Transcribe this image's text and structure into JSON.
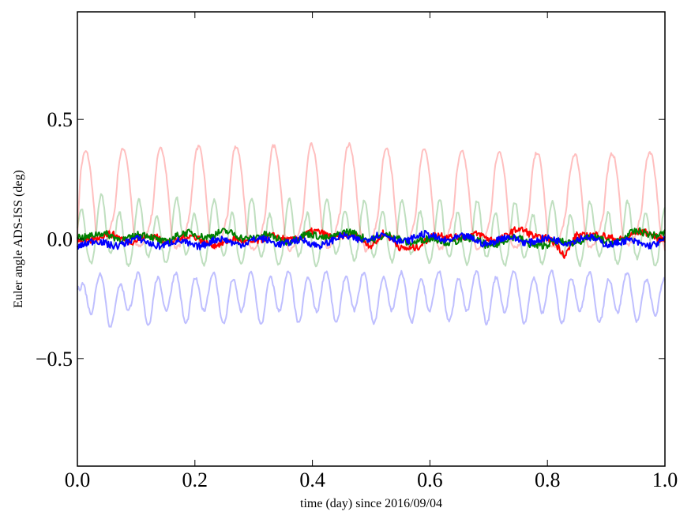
{
  "chart_data": {
    "type": "line",
    "title": "",
    "xlabel": "time (day) since 2016/09/04",
    "ylabel": "Euler angle ADS-ISS (deg)",
    "xlim": [
      0.0,
      1.0
    ],
    "ylim": [
      -0.95,
      0.95
    ],
    "xticks": [
      0.0,
      0.2,
      0.4,
      0.6,
      0.8,
      1.0
    ],
    "xtick_labels": [
      "0.0",
      "0.2",
      "0.4",
      "0.6",
      "0.8",
      "1.0"
    ],
    "yticks": [
      -0.5,
      0.0,
      0.5
    ],
    "ytick_labels": [
      "−0.5",
      "0.0",
      "0.5"
    ],
    "grid": false,
    "legend": "none",
    "series": [
      {
        "color": "#ff0000",
        "opacity": 0.25,
        "kind": "periodic",
        "period_days": 0.064,
        "baseline": 0.0,
        "peak": 0.42,
        "trough": -0.1,
        "x": [
          0.0,
          0.005,
          0.035,
          0.07,
          0.1,
          0.135,
          0.165,
          0.2,
          0.23,
          0.265,
          0.295,
          0.33,
          0.36,
          0.395,
          0.425,
          0.455,
          0.49,
          0.52,
          0.55,
          0.585,
          0.615,
          0.645,
          0.68,
          0.71,
          0.74,
          0.775,
          0.805,
          0.835,
          0.87,
          0.9,
          0.93,
          0.965,
          1.0
        ],
        "y": [
          0.05,
          0.4,
          0.0,
          0.43,
          0.0,
          0.41,
          0.0,
          0.42,
          0.0,
          0.41,
          0.0,
          0.4,
          0.0,
          0.4,
          0.02,
          0.45,
          0.02,
          0.38,
          0.0,
          0.37,
          0.0,
          0.37,
          0.0,
          0.37,
          0.0,
          0.35,
          0.0,
          0.36,
          0.0,
          0.38,
          0.0,
          0.37,
          0.0
        ]
      },
      {
        "color": "#008000",
        "opacity": 0.25,
        "kind": "periodic",
        "period_days": 0.032,
        "baseline": 0.0,
        "peak": 0.2,
        "trough": -0.14,
        "x": [
          0.0,
          0.015,
          0.045,
          0.08,
          0.11,
          0.14,
          0.175,
          0.205,
          0.24,
          0.27,
          0.3,
          0.335,
          0.365,
          0.4,
          0.43,
          0.46,
          0.495,
          0.525,
          0.56,
          0.59,
          0.62,
          0.655,
          0.685,
          0.72,
          0.75,
          0.78,
          0.815,
          0.845,
          0.88,
          0.91,
          0.94,
          0.975,
          1.0
        ],
        "y": [
          0.12,
          -0.12,
          0.2,
          -0.13,
          0.15,
          -0.13,
          0.18,
          -0.13,
          0.16,
          -0.13,
          0.16,
          -0.14,
          0.15,
          -0.13,
          0.15,
          -0.05,
          0.12,
          -0.08,
          0.15,
          -0.1,
          0.13,
          -0.1,
          0.12,
          -0.12,
          0.12,
          -0.12,
          0.12,
          -0.12,
          0.12,
          -0.1,
          0.1,
          -0.1,
          0.0
        ]
      },
      {
        "color": "#0000ff",
        "opacity": 0.25,
        "kind": "periodic",
        "period_days": 0.032,
        "baseline": -0.24,
        "peak": -0.11,
        "trough": -0.38,
        "x": [
          0.0,
          0.005,
          0.03,
          0.055,
          0.07,
          0.09,
          0.125,
          0.155,
          0.19,
          0.22,
          0.255,
          0.285,
          0.315,
          0.35,
          0.38,
          0.415,
          0.445,
          0.475,
          0.51,
          0.54,
          0.575,
          0.605,
          0.64,
          0.67,
          0.7,
          0.735,
          0.765,
          0.8,
          0.83,
          0.86,
          0.895,
          0.925,
          0.96,
          0.99,
          1.0
        ],
        "y": [
          -0.15,
          -0.36,
          -0.12,
          -0.35,
          -0.37,
          -0.12,
          -0.35,
          -0.12,
          -0.34,
          -0.12,
          -0.35,
          -0.12,
          -0.34,
          -0.12,
          -0.33,
          -0.12,
          -0.33,
          -0.12,
          -0.33,
          -0.12,
          -0.33,
          -0.12,
          -0.33,
          -0.12,
          -0.33,
          -0.12,
          -0.33,
          -0.13,
          -0.33,
          -0.13,
          -0.33,
          -0.14,
          -0.32,
          -0.18,
          -0.27
        ]
      },
      {
        "color": "#ff0000",
        "opacity": 1.0,
        "kind": "noise",
        "x": [
          0.0,
          0.05,
          0.1,
          0.15,
          0.2,
          0.25,
          0.3,
          0.35,
          0.4,
          0.45,
          0.5,
          0.52,
          0.55,
          0.6,
          0.65,
          0.7,
          0.75,
          0.8,
          0.83,
          0.85,
          0.9,
          0.95,
          1.0
        ],
        "y": [
          0.0,
          0.01,
          0.0,
          0.0,
          0.0,
          -0.02,
          0.0,
          0.0,
          0.02,
          0.02,
          -0.02,
          0.03,
          -0.05,
          0.0,
          0.02,
          0.0,
          0.03,
          0.01,
          -0.08,
          0.03,
          0.0,
          0.02,
          0.01
        ]
      },
      {
        "color": "#008000",
        "opacity": 1.0,
        "kind": "noise",
        "x": [
          0.0,
          0.05,
          0.1,
          0.15,
          0.2,
          0.25,
          0.3,
          0.35,
          0.4,
          0.45,
          0.5,
          0.55,
          0.6,
          0.65,
          0.7,
          0.75,
          0.8,
          0.85,
          0.9,
          0.95,
          1.0
        ],
        "y": [
          0.02,
          0.01,
          0.01,
          0.0,
          0.02,
          0.02,
          0.01,
          0.0,
          0.01,
          0.02,
          0.01,
          0.0,
          -0.01,
          0.0,
          -0.02,
          0.0,
          -0.03,
          0.0,
          -0.01,
          0.02,
          0.03
        ]
      },
      {
        "color": "#0000ff",
        "opacity": 1.0,
        "kind": "noise",
        "x": [
          0.0,
          0.05,
          0.1,
          0.15,
          0.2,
          0.25,
          0.3,
          0.35,
          0.4,
          0.45,
          0.5,
          0.55,
          0.6,
          0.65,
          0.7,
          0.75,
          0.8,
          0.85,
          0.9,
          0.95,
          1.0
        ],
        "y": [
          -0.02,
          -0.02,
          -0.01,
          -0.02,
          -0.02,
          -0.01,
          -0.01,
          -0.01,
          -0.02,
          0.0,
          0.01,
          0.0,
          0.01,
          0.0,
          -0.01,
          0.0,
          -0.01,
          0.0,
          -0.01,
          -0.02,
          -0.01
        ]
      }
    ]
  }
}
